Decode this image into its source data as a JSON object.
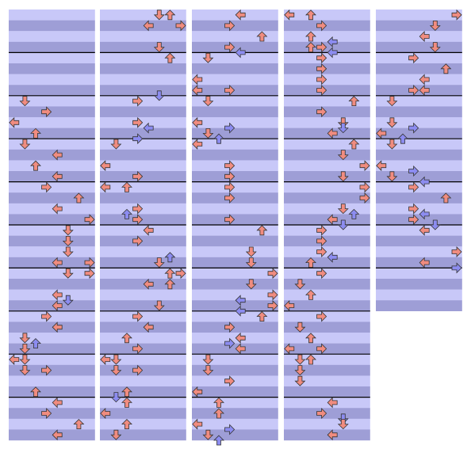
{
  "columns": [
    {
      "measures": 10,
      "notes": [
        [
          8,
          1
        ],
        [
          9,
          3
        ],
        [
          10,
          0
        ],
        [
          11,
          2
        ],
        [
          12,
          1
        ],
        [
          13,
          4
        ],
        [
          14,
          2
        ],
        [
          15,
          4
        ],
        [
          16,
          3
        ],
        [
          17,
          6
        ],
        [
          18,
          4
        ],
        [
          19,
          7
        ],
        [
          20,
          5
        ],
        [
          21,
          5
        ],
        [
          22,
          5
        ],
        [
          23,
          4
        ],
        [
          23,
          7
        ],
        [
          24,
          5
        ],
        [
          24,
          7
        ],
        [
          26,
          4
        ],
        [
          26.5,
          5
        ],
        [
          27,
          4
        ],
        [
          28,
          3
        ],
        [
          29,
          4
        ],
        [
          30,
          1
        ],
        [
          30.5,
          2
        ],
        [
          31,
          1
        ],
        [
          32,
          0
        ],
        [
          32,
          1
        ],
        [
          33,
          1
        ],
        [
          33,
          3
        ],
        [
          35,
          2
        ],
        [
          36,
          4
        ],
        [
          37,
          3
        ],
        [
          38,
          6
        ],
        [
          39,
          4
        ]
      ]
    },
    {
      "measures": 10,
      "notes": [
        [
          0,
          5
        ],
        [
          0,
          6
        ],
        [
          1,
          4
        ],
        [
          1,
          7
        ],
        [
          3,
          5
        ],
        [
          4,
          6
        ],
        [
          7.5,
          5
        ],
        [
          8,
          3
        ],
        [
          10,
          3
        ],
        [
          10.5,
          4
        ],
        [
          11.5,
          3
        ],
        [
          12,
          1
        ],
        [
          14,
          0
        ],
        [
          15,
          3
        ],
        [
          16,
          0
        ],
        [
          16,
          2
        ],
        [
          18,
          3
        ],
        [
          18.5,
          2
        ],
        [
          19,
          3
        ],
        [
          20,
          4
        ],
        [
          21,
          3
        ],
        [
          22.5,
          6
        ],
        [
          23,
          5
        ],
        [
          24,
          6
        ],
        [
          24,
          7
        ],
        [
          25,
          4
        ],
        [
          25,
          6
        ],
        [
          27,
          5
        ],
        [
          28,
          3
        ],
        [
          29,
          4
        ],
        [
          30,
          2
        ],
        [
          31,
          3
        ],
        [
          32,
          0
        ],
        [
          32,
          1
        ],
        [
          33,
          1
        ],
        [
          33,
          3
        ],
        [
          35,
          2
        ],
        [
          35.5,
          1
        ],
        [
          36,
          2
        ],
        [
          37,
          0
        ],
        [
          38,
          2
        ],
        [
          39,
          1
        ]
      ]
    },
    {
      "measures": 10,
      "notes": [
        [
          0,
          4
        ],
        [
          1,
          3
        ],
        [
          2,
          6
        ],
        [
          3,
          3
        ],
        [
          3.5,
          4
        ],
        [
          4,
          1
        ],
        [
          6,
          0
        ],
        [
          7,
          0
        ],
        [
          7,
          3
        ],
        [
          8,
          1
        ],
        [
          10,
          0
        ],
        [
          10.5,
          3
        ],
        [
          11,
          1
        ],
        [
          11.5,
          2
        ],
        [
          12,
          0
        ],
        [
          14,
          3
        ],
        [
          15,
          3
        ],
        [
          16,
          3
        ],
        [
          17,
          3
        ],
        [
          19,
          3
        ],
        [
          20,
          6
        ],
        [
          22,
          5
        ],
        [
          23,
          5
        ],
        [
          24,
          7
        ],
        [
          25,
          5
        ],
        [
          26,
          7
        ],
        [
          26.5,
          4
        ],
        [
          27,
          7
        ],
        [
          27.5,
          4
        ],
        [
          28,
          6
        ],
        [
          29,
          3
        ],
        [
          30,
          4
        ],
        [
          30.5,
          3
        ],
        [
          31,
          4
        ],
        [
          32,
          1
        ],
        [
          33,
          1
        ],
        [
          34,
          3
        ],
        [
          35,
          0
        ],
        [
          36,
          2
        ],
        [
          37,
          2
        ],
        [
          38,
          0
        ],
        [
          38.5,
          3
        ],
        [
          39,
          1
        ],
        [
          39.5,
          2
        ]
      ]
    },
    {
      "measures": 10,
      "notes": [
        [
          0,
          0
        ],
        [
          0,
          2
        ],
        [
          1,
          3
        ],
        [
          2,
          2
        ],
        [
          2.5,
          4
        ],
        [
          3,
          2
        ],
        [
          3,
          3
        ],
        [
          3.5,
          4
        ],
        [
          4,
          3
        ],
        [
          5,
          3
        ],
        [
          6,
          3
        ],
        [
          7,
          3
        ],
        [
          8,
          6
        ],
        [
          9,
          3
        ],
        [
          10,
          5
        ],
        [
          10.5,
          5
        ],
        [
          11,
          4
        ],
        [
          12,
          6
        ],
        [
          13,
          5
        ],
        [
          14,
          7
        ],
        [
          15,
          5
        ],
        [
          16,
          7
        ],
        [
          17,
          7
        ],
        [
          18,
          5
        ],
        [
          18.5,
          6
        ],
        [
          19,
          4
        ],
        [
          19.5,
          5
        ],
        [
          20,
          3
        ],
        [
          21,
          3
        ],
        [
          22,
          3
        ],
        [
          22.5,
          4
        ],
        [
          23,
          2
        ],
        [
          24,
          3
        ],
        [
          25,
          1
        ],
        [
          26,
          2
        ],
        [
          27,
          0
        ],
        [
          28,
          3
        ],
        [
          29,
          1
        ],
        [
          30,
          2
        ],
        [
          31,
          0
        ],
        [
          31,
          3
        ],
        [
          32,
          1
        ],
        [
          32,
          2
        ],
        [
          33,
          1
        ],
        [
          34,
          1
        ],
        [
          36,
          4
        ],
        [
          37,
          3
        ],
        [
          37.5,
          5
        ],
        [
          38,
          5
        ],
        [
          39,
          4
        ]
      ]
    },
    {
      "measures": 7,
      "notes": [
        [
          0,
          7
        ],
        [
          1,
          5
        ],
        [
          2,
          4
        ],
        [
          3,
          5
        ],
        [
          4,
          3
        ],
        [
          5,
          6
        ],
        [
          6,
          4
        ],
        [
          7,
          3
        ],
        [
          7,
          4
        ],
        [
          8,
          1
        ],
        [
          10,
          1
        ],
        [
          10.5,
          3
        ],
        [
          11,
          0
        ],
        [
          11.5,
          2
        ],
        [
          12,
          1
        ],
        [
          14,
          0
        ],
        [
          14.5,
          3
        ],
        [
          15,
          1
        ],
        [
          15.5,
          4
        ],
        [
          16,
          3
        ],
        [
          17,
          6
        ],
        [
          18,
          3
        ],
        [
          18.5,
          4
        ],
        [
          19,
          3
        ],
        [
          19.5,
          5
        ],
        [
          20,
          4
        ],
        [
          22,
          7
        ],
        [
          23,
          4
        ],
        [
          23.5,
          7
        ]
      ]
    }
  ]
}
